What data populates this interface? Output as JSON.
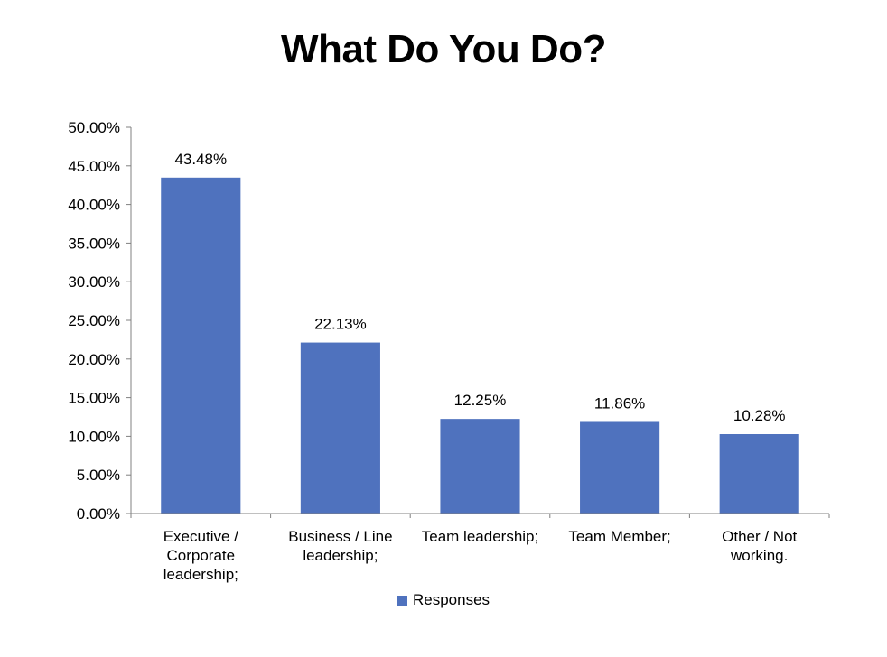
{
  "chart_data": {
    "type": "bar",
    "title": "What Do You Do?",
    "xlabel": "",
    "ylabel": "",
    "ylim": [
      0,
      50
    ],
    "y_ticks": [
      "0.00%",
      "5.00%",
      "10.00%",
      "15.00%",
      "20.00%",
      "25.00%",
      "30.00%",
      "35.00%",
      "40.00%",
      "45.00%",
      "50.00%"
    ],
    "y_tick_values": [
      0,
      5,
      10,
      15,
      20,
      25,
      30,
      35,
      40,
      45,
      50
    ],
    "categories": [
      [
        "Executive /",
        "Corporate",
        "leadership;"
      ],
      [
        "Business / Line",
        "leadership;"
      ],
      [
        "Team leadership;"
      ],
      [
        "Team Member;"
      ],
      [
        "Other / Not",
        "working."
      ]
    ],
    "series": [
      {
        "name": "Responses",
        "values": [
          43.48,
          22.13,
          12.25,
          11.86,
          10.28
        ],
        "labels": [
          "43.48%",
          "22.13%",
          "12.25%",
          "11.86%",
          "10.28%"
        ],
        "color": "#4F72BE"
      }
    ],
    "legend_position": "bottom",
    "grid": false
  }
}
